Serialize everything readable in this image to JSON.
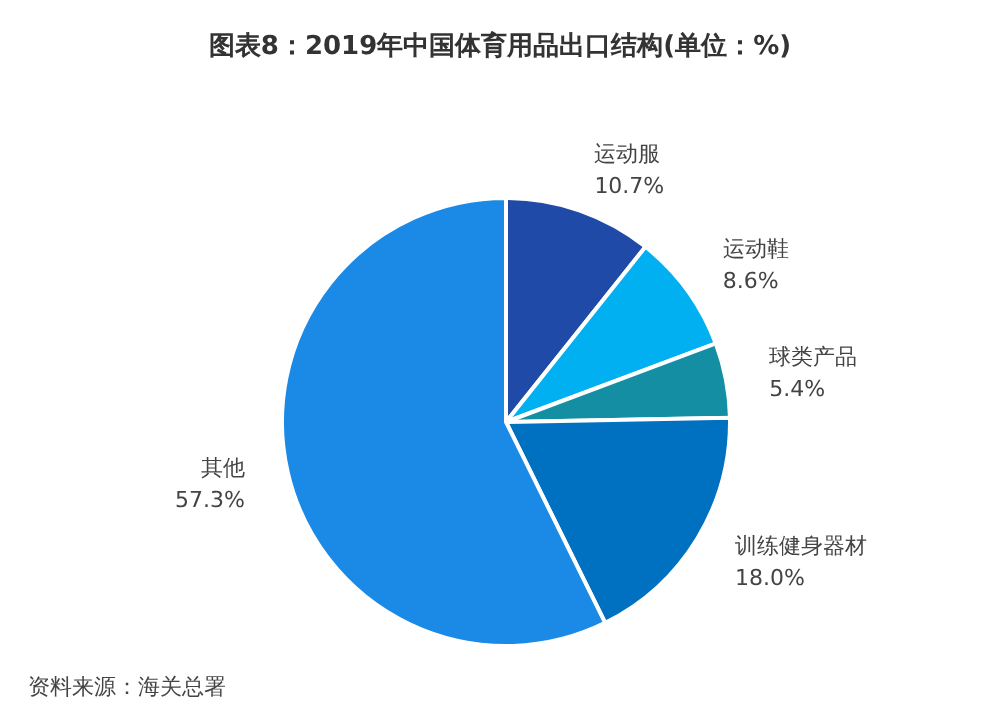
{
  "chart_data": {
    "type": "pie",
    "title": "图表8：2019年中国体育用品出口结构(单位：%)",
    "categories": [
      "运动服",
      "运动鞋",
      "球类产品",
      "训练健身器材",
      "其他"
    ],
    "values": [
      10.7,
      8.6,
      5.4,
      18.0,
      57.3
    ],
    "value_labels": [
      "10.7%",
      "8.6%",
      "5.4%",
      "18.0%",
      "57.3%"
    ],
    "colors": [
      "#1f4aa8",
      "#00b0f0",
      "#138ea3",
      "#0070c0",
      "#1a8ae6"
    ],
    "annotations": [
      "资料来源：海关总署"
    ]
  }
}
